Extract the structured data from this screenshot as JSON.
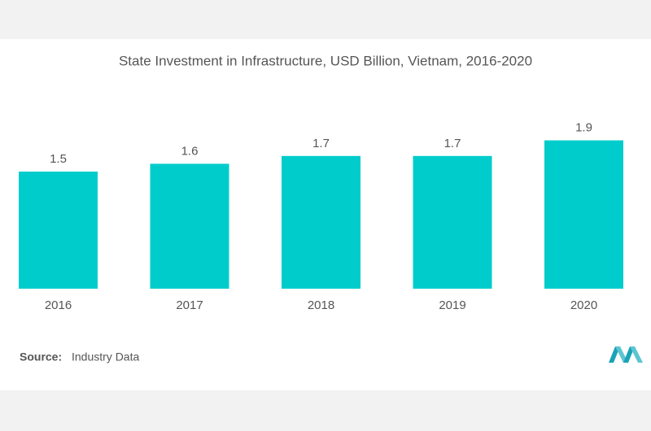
{
  "chart_data": {
    "type": "bar",
    "title": "State Investment in Infrastructure, USD Billion, Vietnam, 2016-2020",
    "categories": [
      "2016",
      "2017",
      "2018",
      "2019",
      "2020"
    ],
    "values": [
      1.5,
      1.6,
      1.7,
      1.7,
      1.9
    ],
    "color": "#00cccc",
    "source": {
      "label": "Source:",
      "text": "Industry Data"
    }
  }
}
